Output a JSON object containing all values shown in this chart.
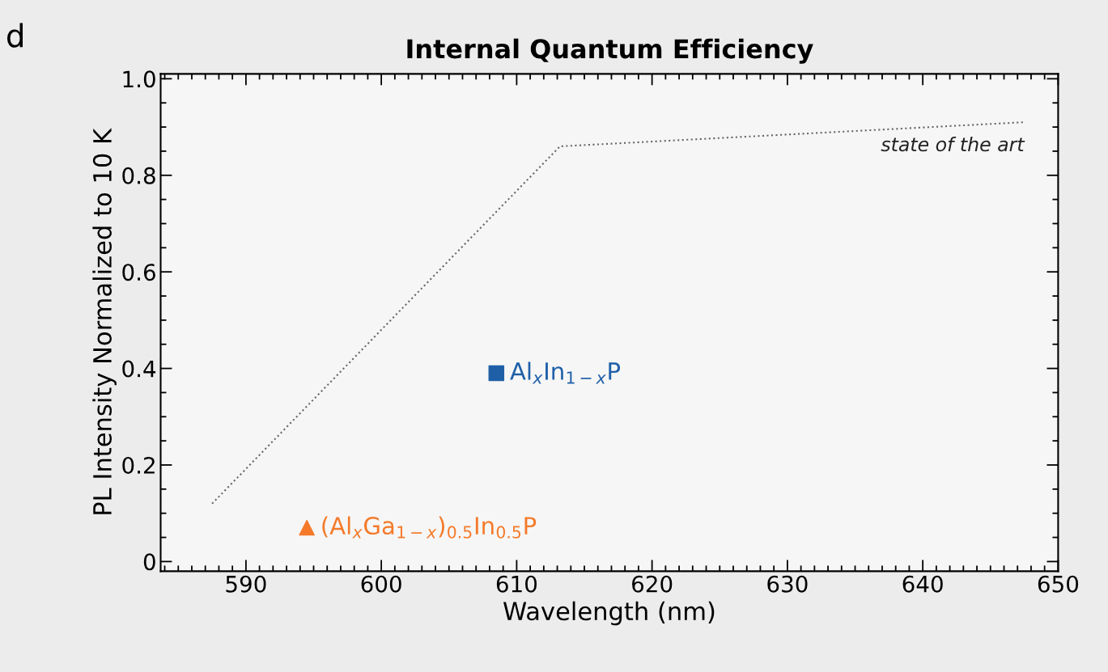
{
  "chart_data": {
    "type": "scatter",
    "title": "Internal Quantum Efficiency",
    "xlabel": "Wavelength (nm)",
    "ylabel": "PL Intensity Normalized to 10 K",
    "annotations": [
      "d"
    ],
    "series": [
      {
        "name": "state of the art",
        "type": "line",
        "color": "#666666",
        "line_style": "dotted",
        "marker": "none",
        "x": [
          587.5,
          613.2,
          647.5
        ],
        "values": [
          0.12,
          0.86,
          0.91
        ]
      },
      {
        "name": "Al$_{x}$In$_{1−x}$P",
        "color": "#1f5fa8",
        "marker": "square",
        "x": [
          608.5
        ],
        "values": [
          0.39
        ]
      },
      {
        "name": "(Al$_{x}$Ga$_{1−x}$)$_{0.5}$In$_{0.5}$P",
        "color": "#f47a2a",
        "marker": "triangle",
        "x": [
          594.5
        ],
        "values": [
          0.07
        ]
      }
    ],
    "xlim": [
      583.7,
      650
    ],
    "xticks": [
      590,
      600,
      610,
      620,
      630,
      640,
      650
    ],
    "ylim": [
      -0.02,
      1.01
    ],
    "yticks": [
      0,
      0.2,
      0.4,
      0.6,
      0.8,
      {
        "value": 1,
        "label": "1.0"
      }
    ],
    "grid": false,
    "legend": false
  }
}
